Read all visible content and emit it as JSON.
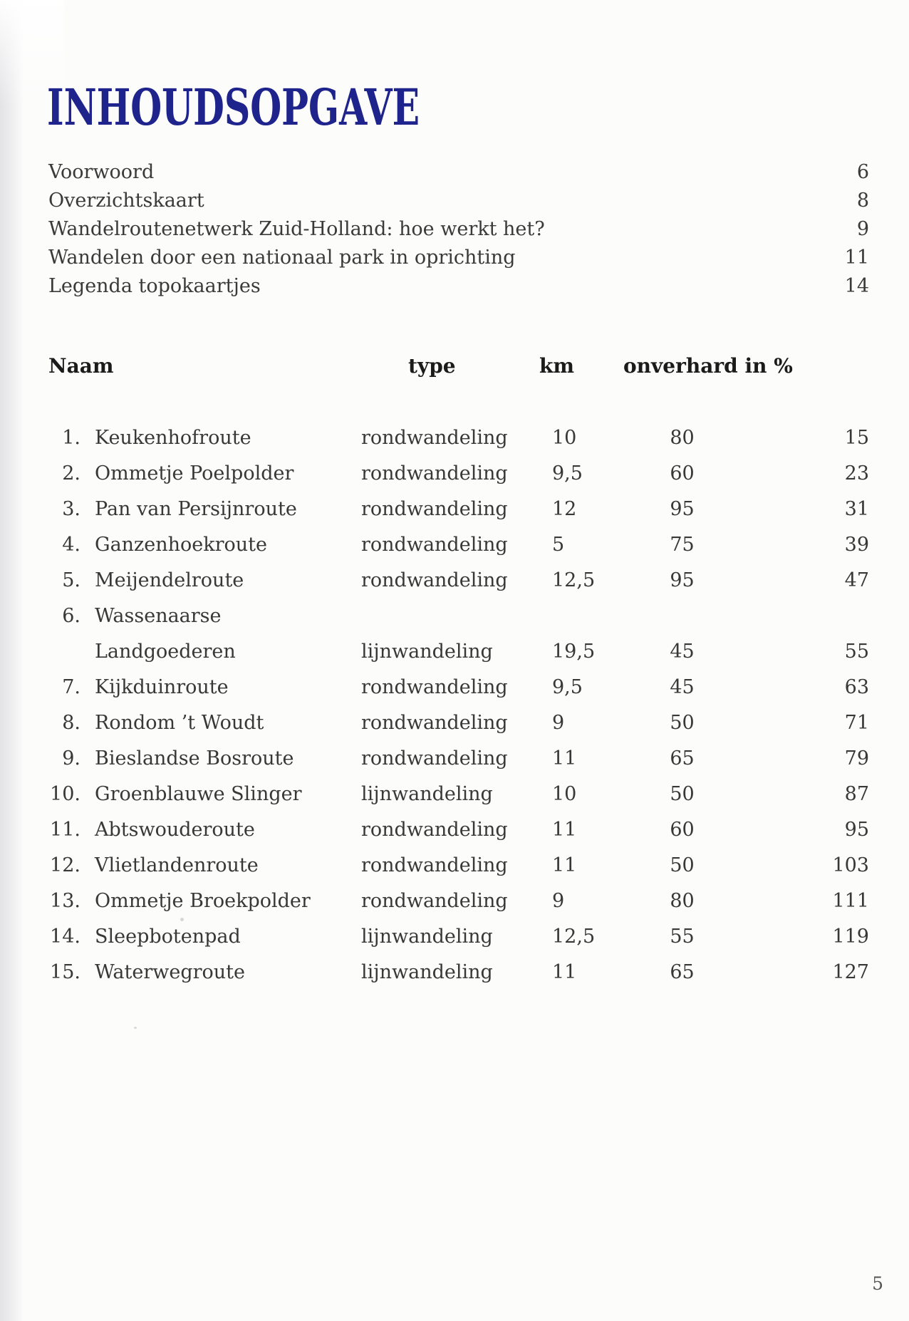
{
  "page": {
    "title": "INHOUDSOPGAVE",
    "title_color": "#1e248c",
    "page_number": "5"
  },
  "front_matter": [
    {
      "label": "Voorwoord",
      "page": "6"
    },
    {
      "label": "Overzichtskaart",
      "page": "8"
    },
    {
      "label": "Wandelroutenetwerk Zuid-Holland: hoe werkt het?",
      "page": "9"
    },
    {
      "label": "Wandelen door een nationaal park in oprichting",
      "page": "11"
    },
    {
      "label": "Legenda topokaartjes",
      "page": "14"
    }
  ],
  "table": {
    "headers": {
      "name": "Naam",
      "type": "type",
      "km": "km",
      "unpaved": "onverhard in %"
    },
    "rows": [
      {
        "num": "1.",
        "name": "Keukenhofroute",
        "type": "rondwandeling",
        "km": "10",
        "unpaved": "80",
        "page": "15"
      },
      {
        "num": "2.",
        "name": "Ommetje Poelpolder",
        "type": "rondwandeling",
        "km": "9,5",
        "unpaved": "60",
        "page": "23"
      },
      {
        "num": "3.",
        "name": "Pan van Persijnroute",
        "type": "rondwandeling",
        "km": "12",
        "unpaved": "95",
        "page": "31"
      },
      {
        "num": "4.",
        "name": "Ganzenhoekroute",
        "type": "rondwandeling",
        "km": "5",
        "unpaved": "75",
        "page": "39"
      },
      {
        "num": "5.",
        "name": "Meijendelroute",
        "type": "rondwandeling",
        "km": "12,5",
        "unpaved": "95",
        "page": "47"
      },
      {
        "num": "6.",
        "name": "Wassenaarse",
        "name_cont": "Landgoederen",
        "type": "lijnwandeling",
        "km": "19,5",
        "unpaved": "45",
        "page": "55"
      },
      {
        "num": "7.",
        "name": "Kijkduinroute",
        "type": "rondwandeling",
        "km": "9,5",
        "unpaved": "45",
        "page": "63"
      },
      {
        "num": "8.",
        "name": "Rondom ’t Woudt",
        "type": "rondwandeling",
        "km": "9",
        "unpaved": "50",
        "page": "71"
      },
      {
        "num": "9.",
        "name": "Bieslandse Bosroute",
        "type": "rondwandeling",
        "km": "11",
        "unpaved": "65",
        "page": "79"
      },
      {
        "num": "10.",
        "name": "Groenblauwe Slinger",
        "type": "lijnwandeling",
        "km": "10",
        "unpaved": "50",
        "page": "87"
      },
      {
        "num": "11.",
        "name": "Abtswouderoute",
        "type": "rondwandeling",
        "km": "11",
        "unpaved": "60",
        "page": "95"
      },
      {
        "num": "12.",
        "name": "Vlietlandenroute",
        "type": "rondwandeling",
        "km": "11",
        "unpaved": "50",
        "page": "103"
      },
      {
        "num": "13.",
        "name": "Ommetje Broekpolder",
        "type": "rondwandeling",
        "km": "9",
        "unpaved": "80",
        "page": "111"
      },
      {
        "num": "14.",
        "name": "Sleepbotenpad",
        "type": "lijnwandeling",
        "km": "12,5",
        "unpaved": "55",
        "page": "119"
      },
      {
        "num": "15.",
        "name": "Waterwegroute",
        "type": "lijnwandeling",
        "km": "11",
        "unpaved": "65",
        "page": "127"
      }
    ]
  }
}
